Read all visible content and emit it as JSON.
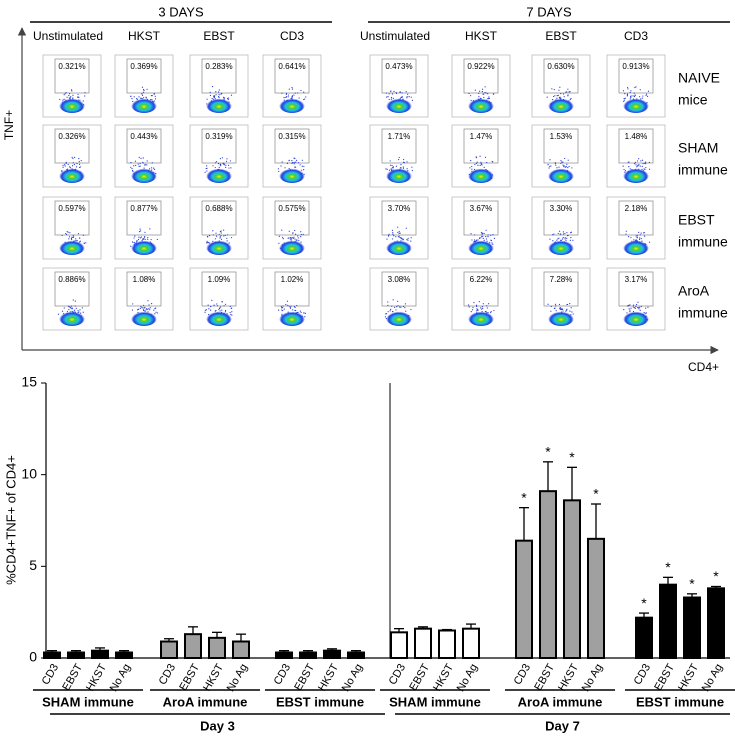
{
  "flow": {
    "y_axis_label": "TNF+",
    "x_axis_label": "CD4+",
    "row_labels": [
      [
        "NAIVE",
        "mice"
      ],
      [
        "SHAM",
        "immune"
      ],
      [
        "EBST",
        "immune"
      ],
      [
        "AroA",
        "immune"
      ]
    ],
    "day_groups": [
      {
        "title": "3 DAYS",
        "columns": [
          "Unstimulated",
          "HKST",
          "EBST",
          "CD3"
        ],
        "rows": [
          [
            "0.321%",
            "0.369%",
            "0.283%",
            "0.641%"
          ],
          [
            "0.326%",
            "0.443%",
            "0.319%",
            "0.315%"
          ],
          [
            "0.597%",
            "0.877%",
            "0.688%",
            "0.575%"
          ],
          [
            "0.886%",
            "1.08%",
            "1.09%",
            "1.02%"
          ]
        ]
      },
      {
        "title": "7 DAYS",
        "columns": [
          "Unstimulated",
          "HKST",
          "EBST",
          "CD3"
        ],
        "rows": [
          [
            "0.473%",
            "0.922%",
            "0.630%",
            "0.913%"
          ],
          [
            "1.71%",
            "1.47%",
            "1.53%",
            "1.48%"
          ],
          [
            "3.70%",
            "3.67%",
            "3.30%",
            "2.18%"
          ],
          [
            "3.08%",
            "6.22%",
            "7.28%",
            "3.17%"
          ]
        ]
      }
    ]
  },
  "chart_data": {
    "type": "bar",
    "y_label": "%CD4+TNF+ of CD4+",
    "ylim": [
      0,
      15
    ],
    "yticks": [
      0,
      5,
      10,
      15
    ],
    "days": [
      {
        "name": "Day 3",
        "groups": [
          {
            "name": "SHAM immune",
            "color": "#000000",
            "categories": [
              "CD3",
              "EBST",
              "HKST",
              "No Ag"
            ],
            "values": [
              0.3,
              0.3,
              0.4,
              0.3
            ],
            "errors": [
              0.1,
              0.1,
              0.15,
              0.1
            ]
          },
          {
            "name": "AroA immune",
            "color": "#a0a0a0",
            "categories": [
              "CD3",
              "EBST",
              "HKST",
              "No Ag"
            ],
            "values": [
              0.9,
              1.3,
              1.1,
              0.9
            ],
            "errors": [
              0.15,
              0.4,
              0.3,
              0.4
            ]
          },
          {
            "name": "EBST immune",
            "color": "#000000",
            "categories": [
              "CD3",
              "EBST",
              "HKST",
              "No Ag"
            ],
            "values": [
              0.3,
              0.3,
              0.4,
              0.3
            ],
            "errors": [
              0.1,
              0.1,
              0.1,
              0.1
            ]
          }
        ]
      },
      {
        "name": "Day 7",
        "groups": [
          {
            "name": "SHAM immune",
            "color": "#ffffff",
            "categories": [
              "CD3",
              "EBST",
              "HKST",
              "No Ag"
            ],
            "values": [
              1.4,
              1.6,
              1.5,
              1.6
            ],
            "errors": [
              0.2,
              0.1,
              0.05,
              0.25
            ]
          },
          {
            "name": "AroA immune",
            "color": "#a0a0a0",
            "categories": [
              "CD3",
              "EBST",
              "HKST",
              "No Ag"
            ],
            "values": [
              6.4,
              9.1,
              8.6,
              6.5
            ],
            "errors": [
              1.8,
              1.6,
              1.8,
              1.9
            ],
            "annotations": [
              "*",
              "*",
              "*",
              "*"
            ]
          },
          {
            "name": "EBST immune",
            "color": "#000000",
            "categories": [
              "CD3",
              "EBST",
              "HKST",
              "No Ag"
            ],
            "values": [
              2.2,
              4.0,
              3.3,
              3.8
            ],
            "errors": [
              0.25,
              0.4,
              0.2,
              0.1
            ],
            "annotations": [
              "*",
              "*",
              "*",
              "*"
            ]
          }
        ]
      }
    ]
  }
}
